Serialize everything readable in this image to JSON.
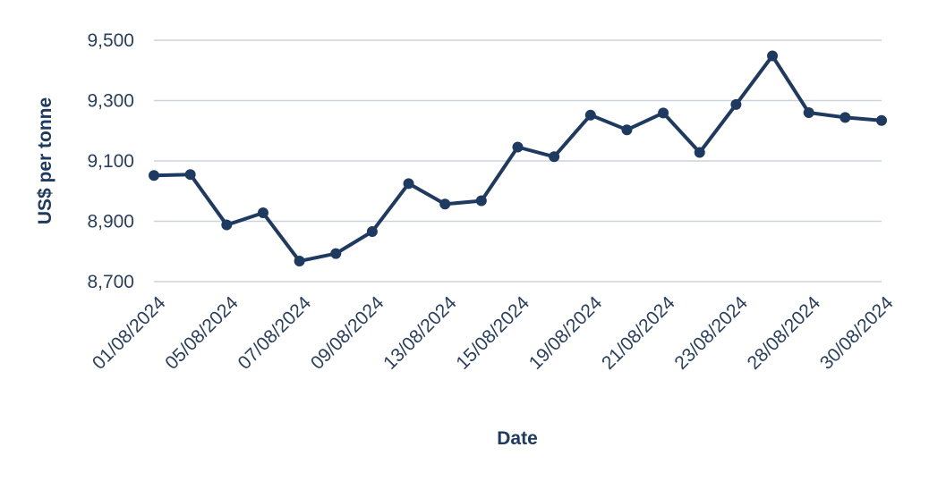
{
  "chart_data": {
    "type": "line",
    "title": "",
    "xlabel": "Date",
    "ylabel": "US$ per tonne",
    "ylim": [
      8700,
      9500
    ],
    "yticks": [
      8700,
      8900,
      9100,
      9300,
      9500
    ],
    "ytick_labels": [
      "8,700",
      "8,900",
      "9,100",
      "9,300",
      "9,500"
    ],
    "grid": "horizontal",
    "legend": "none",
    "line_color": "#1f3a60",
    "grid_color": "#cdd3dc",
    "x_tick_labels": [
      "01/08/2024",
      "05/08/2024",
      "07/08/2024",
      "09/08/2024",
      "13/08/2024",
      "15/08/2024",
      "19/08/2024",
      "21/08/2024",
      "23/08/2024",
      "28/08/2024",
      "30/08/2024"
    ],
    "series": [
      {
        "values": [
          9052,
          9055,
          8888,
          8928,
          8768,
          8793,
          8866,
          9025,
          8957,
          8968,
          9146,
          9114,
          9252,
          9203,
          9259,
          9128,
          9287,
          9448,
          9260,
          9244,
          9234
        ]
      }
    ]
  }
}
